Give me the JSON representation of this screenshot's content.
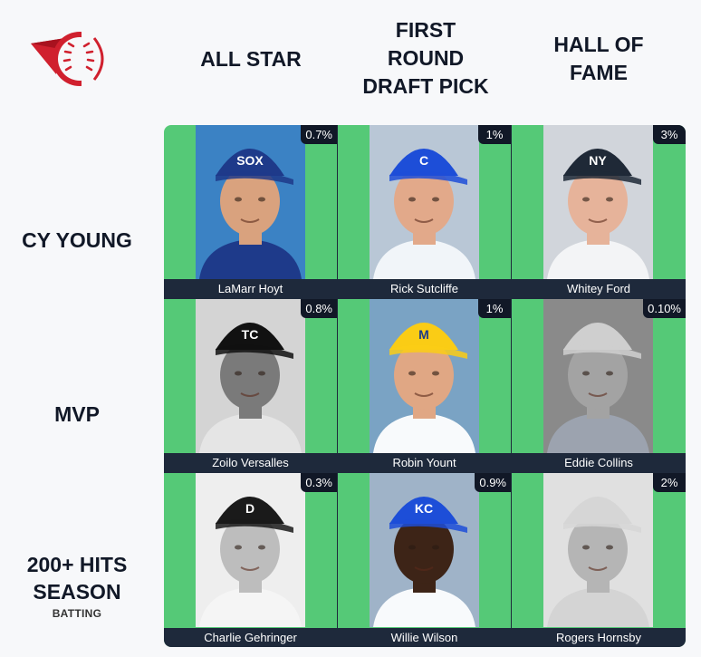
{
  "colors": {
    "correct_green": "#55c977",
    "dark_navy": "#1e293b",
    "logo_red": "#d0202e"
  },
  "logo": {
    "icon": "baseball-logo-icon"
  },
  "columns": [
    {
      "label": "ALL STAR"
    },
    {
      "label": "FIRST\nROUND\nDRAFT PICK"
    },
    {
      "label": "HALL OF\nFAME"
    }
  ],
  "rows": [
    {
      "label": "CY YOUNG",
      "sub": ""
    },
    {
      "label": "MVP",
      "sub": ""
    },
    {
      "label": "200+ HITS\nSEASON",
      "sub": "BATTING"
    }
  ],
  "cells": [
    {
      "player": "LaMarr Hoyt",
      "pct": "0.7%",
      "cap": "#1e3a8a",
      "capText": "SOX",
      "skin": "#d9a27e",
      "bg": "#3b82c4",
      "jersey": "#1e3a8a",
      "bw": false
    },
    {
      "player": "Rick Sutcliffe",
      "pct": "1%",
      "cap": "#1d4ed8",
      "capText": "C",
      "skin": "#e2a98a",
      "bg": "#b9c7d6",
      "jersey": "#f1f5f9",
      "bw": false
    },
    {
      "player": "Whitey Ford",
      "pct": "3%",
      "cap": "#1f2937",
      "capText": "NY",
      "skin": "#e6b39a",
      "bg": "#d1d5db",
      "jersey": "#f3f4f6",
      "bw": false
    },
    {
      "player": "Zoilo Versalles",
      "pct": "0.8%",
      "cap": "#111111",
      "capText": "TC",
      "skin": "#7a7a7a",
      "bg": "#d4d4d4",
      "jersey": "#e5e5e5",
      "bw": true
    },
    {
      "player": "Robin Yount",
      "pct": "1%",
      "cap": "#facc15",
      "capText": "M",
      "skin": "#e0a784",
      "bg": "#7aa3c4",
      "jersey": "#f8fafc",
      "bw": false
    },
    {
      "player": "Eddie Collins",
      "pct": "0.10%",
      "cap": "#cfcfcf",
      "capText": "",
      "skin": "#a3a3a3",
      "bg": "#8a8a8a",
      "jersey": "#9ca3af",
      "bw": true
    },
    {
      "player": "Charlie Gehringer",
      "pct": "0.3%",
      "cap": "#1a1a1a",
      "capText": "D",
      "skin": "#bdbdbd",
      "bg": "#eeeeee",
      "jersey": "#f5f5f5",
      "bw": true
    },
    {
      "player": "Willie Wilson",
      "pct": "0.9%",
      "cap": "#1d4ed8",
      "capText": "KC",
      "skin": "#3d2417",
      "bg": "#9fb3c8",
      "jersey": "#f8fafc",
      "bw": false
    },
    {
      "player": "Rogers Hornsby",
      "pct": "2%",
      "cap": "#d6d6d6",
      "capText": "",
      "skin": "#b5b5b5",
      "bg": "#e0e0e0",
      "jersey": "#d4d4d4",
      "bw": true
    }
  ]
}
